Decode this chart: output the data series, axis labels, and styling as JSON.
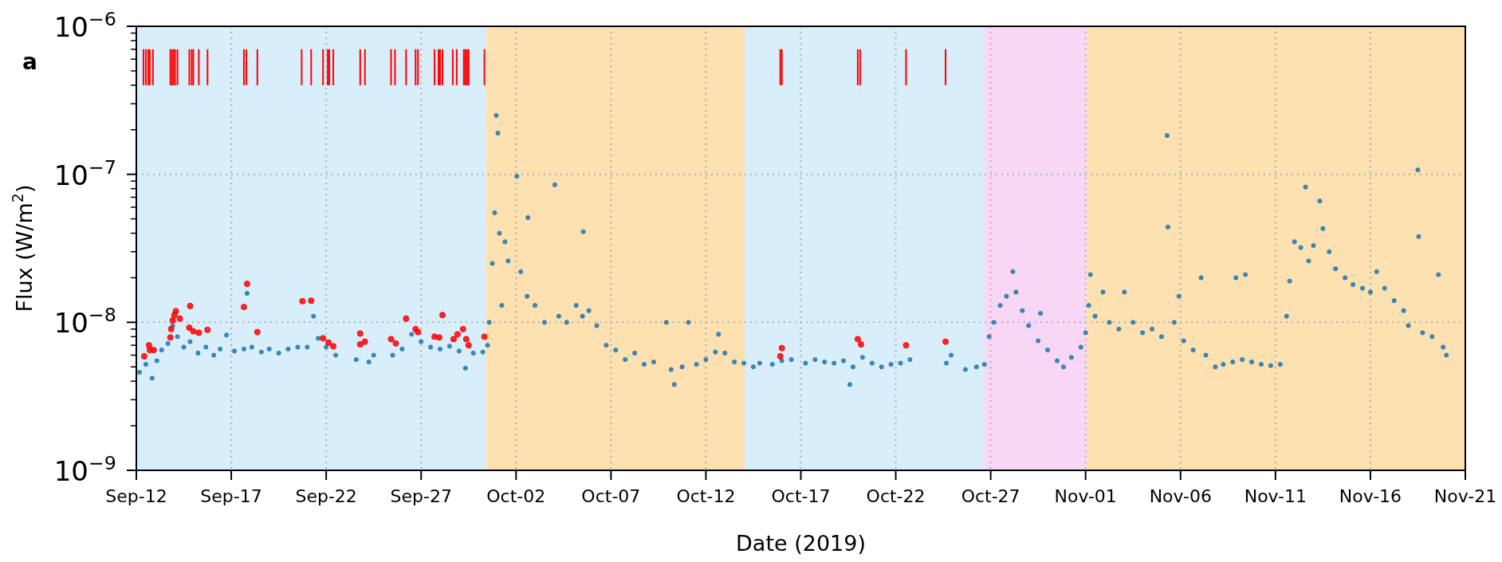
{
  "chart_data": {
    "type": "scatter",
    "xlabel": "Date (2019)",
    "ylabel": "Flux (W/m$^{2}$)",
    "annotations": [
      "a"
    ],
    "log": true,
    "grid": true,
    "marker": "circle",
    "xlim": [
      "2019-09-12",
      "2019-11-21"
    ],
    "xticks": [
      {
        "value": "2019-09-12",
        "label": "Sep-12"
      },
      {
        "value": "2019-09-17",
        "label": "Sep-17"
      },
      {
        "value": "2019-09-22",
        "label": "Sep-22"
      },
      {
        "value": "2019-09-27",
        "label": "Sep-27"
      },
      {
        "value": "2019-10-02",
        "label": "Oct-02"
      },
      {
        "value": "2019-10-07",
        "label": "Oct-07"
      },
      {
        "value": "2019-10-12",
        "label": "Oct-12"
      },
      {
        "value": "2019-10-17",
        "label": "Oct-17"
      },
      {
        "value": "2019-10-22",
        "label": "Oct-22"
      },
      {
        "value": "2019-10-27",
        "label": "Oct-27"
      },
      {
        "value": "2019-11-01",
        "label": "Nov-01"
      },
      {
        "value": "2019-11-06",
        "label": "Nov-06"
      },
      {
        "value": "2019-11-11",
        "label": "Nov-11"
      },
      {
        "value": "2019-11-16",
        "label": "Nov-16"
      },
      {
        "value": "2019-11-21",
        "label": "Nov-21"
      }
    ],
    "ylim": [
      1e-09,
      1e-06
    ],
    "yticks": [
      {
        "value": 1e-09,
        "label": "10$^{−9}$"
      },
      {
        "value": 2e-09,
        "label": null
      },
      {
        "value": 3e-09,
        "label": null
      },
      {
        "value": 4e-09,
        "label": null
      },
      {
        "value": 5e-09,
        "label": null
      },
      {
        "value": 6e-09,
        "label": null
      },
      {
        "value": 7e-09,
        "label": null
      },
      {
        "value": 8e-09,
        "label": null
      },
      {
        "value": 9e-09,
        "label": null
      },
      {
        "value": 1e-08,
        "label": "10$^{−8}$"
      },
      {
        "value": 2e-08,
        "label": null
      },
      {
        "value": 3e-08,
        "label": null
      },
      {
        "value": 4e-08,
        "label": null
      },
      {
        "value": 5e-08,
        "label": null
      },
      {
        "value": 6e-08,
        "label": null
      },
      {
        "value": 7e-08,
        "label": null
      },
      {
        "value": 8e-08,
        "label": null
      },
      {
        "value": 9e-08,
        "label": null
      },
      {
        "value": 1e-07,
        "label": "10$^{−7}$"
      },
      {
        "value": 2e-07,
        "label": null
      },
      {
        "value": 3e-07,
        "label": null
      },
      {
        "value": 4e-07,
        "label": null
      },
      {
        "value": 5e-07,
        "label": null
      },
      {
        "value": 6e-07,
        "label": null
      },
      {
        "value": 7e-07,
        "label": null
      },
      {
        "value": 8e-07,
        "label": null
      },
      {
        "value": 9e-07,
        "label": null
      },
      {
        "value": 1e-06,
        "label": "10$^{−6}$"
      }
    ],
    "bands": [
      {
        "axis": "x",
        "from": "2019-09-12",
        "to": "2019-09-30T10:00",
        "color": "#d9eefb"
      },
      {
        "axis": "x",
        "from": "2019-09-30T10:00",
        "to": "2019-10-14T01:00",
        "color": "#fde1b1"
      },
      {
        "axis": "x",
        "from": "2019-10-14T01:00",
        "to": "2019-10-26T16:00",
        "color": "#d9eefb"
      },
      {
        "axis": "x",
        "from": "2019-10-26T16:00",
        "to": "2019-11-01T01:00",
        "color": "#f8d7f6"
      },
      {
        "axis": "x",
        "from": "2019-11-01T01:00",
        "to": "2019-11-21",
        "color": "#fde1b1"
      }
    ],
    "series": [
      {
        "color": "#1f77b4",
        "x": [
          "2019-09-12T04:00",
          "2019-09-12T12:00",
          "2019-09-12T20:00",
          "2019-09-13T02:00",
          "2019-09-13T08:00",
          "2019-09-13T16:00",
          "2019-09-13T22:00",
          "2019-09-14T04:00",
          "2019-09-14T12:00",
          "2019-09-14T20:00",
          "2019-09-15T06:00",
          "2019-09-15T16:00",
          "2019-09-16T02:00",
          "2019-09-16T10:00",
          "2019-09-16T18:00",
          "2019-09-17T04:00",
          "2019-09-17T16:00",
          "2019-09-17T20:00",
          "2019-09-18T02:00",
          "2019-09-18T14:00",
          "2019-09-19T00:00",
          "2019-09-19T12:00",
          "2019-09-20T00:00",
          "2019-09-20T12:00",
          "2019-09-21T00:00",
          "2019-09-21T08:00",
          "2019-09-21T14:00",
          "2019-09-22T00:00",
          "2019-09-22T12:00",
          "2019-09-23T14:00",
          "2019-09-24T06:00",
          "2019-09-24T12:00",
          "2019-09-25T12:00",
          "2019-09-26T00:00",
          "2019-09-26T12:00",
          "2019-09-27T00:00",
          "2019-09-27T12:00",
          "2019-09-28T00:00",
          "2019-09-28T12:00",
          "2019-09-29T00:00",
          "2019-09-29T08:00",
          "2019-09-29T18:00",
          "2019-09-30T06:00",
          "2019-09-30T12:00",
          "2019-09-30T14:00",
          "2019-09-30T18:00",
          "2019-09-30T21:00",
          "2019-09-30T23:00",
          "2019-10-01T01:00",
          "2019-10-01T03:00",
          "2019-10-01T06:00",
          "2019-10-01T10:00",
          "2019-10-01T14:00",
          "2019-10-02T01:00",
          "2019-10-02T06:00",
          "2019-10-02T14:00",
          "2019-10-02T15:00",
          "2019-10-03T00:00",
          "2019-10-03T12:00",
          "2019-10-04T01:00",
          "2019-10-04T06:00",
          "2019-10-04T16:00",
          "2019-10-05T04:00",
          "2019-10-05T12:00",
          "2019-10-05T13:00",
          "2019-10-05T20:00",
          "2019-10-06T06:00",
          "2019-10-06T18:00",
          "2019-10-07T06:00",
          "2019-10-07T18:00",
          "2019-10-08T06:00",
          "2019-10-08T18:00",
          "2019-10-09T06:00",
          "2019-10-09T22:00",
          "2019-10-10T04:00",
          "2019-10-10T08:00",
          "2019-10-10T18:00",
          "2019-10-11T02:00",
          "2019-10-11T12:00",
          "2019-10-12T00:00",
          "2019-10-12T12:00",
          "2019-10-12T16:00",
          "2019-10-13T00:00",
          "2019-10-13T12:00",
          "2019-10-14T00:00",
          "2019-10-14T12:00",
          "2019-10-14T20:00",
          "2019-10-15T12:00",
          "2019-10-16T00:00",
          "2019-10-16T12:00",
          "2019-10-17T06:00",
          "2019-10-17T18:00",
          "2019-10-18T06:00",
          "2019-10-18T18:00",
          "2019-10-19T06:00",
          "2019-10-19T14:00",
          "2019-10-19T18:00",
          "2019-10-20T06:00",
          "2019-10-20T18:00",
          "2019-10-21T06:00",
          "2019-10-21T18:00",
          "2019-10-22T06:00",
          "2019-10-22T18:00",
          "2019-10-24T16:00",
          "2019-10-24T22:00",
          "2019-10-25T16:00",
          "2019-10-26T06:00",
          "2019-10-26T16:00",
          "2019-10-26T22:00",
          "2019-10-27T04:00",
          "2019-10-27T12:00",
          "2019-10-27T20:00",
          "2019-10-28T04:00",
          "2019-10-28T08:00",
          "2019-10-28T16:00",
          "2019-10-29T00:00",
          "2019-10-29T12:00",
          "2019-10-29T15:00",
          "2019-10-30T00:00",
          "2019-10-30T12:00",
          "2019-10-30T20:00",
          "2019-10-31T06:00",
          "2019-10-31T18:00",
          "2019-11-01T00:00",
          "2019-11-01T04:00",
          "2019-11-01T06:00",
          "2019-11-01T12:00",
          "2019-11-01T22:00",
          "2019-11-02T06:00",
          "2019-11-02T18:00",
          "2019-11-03T01:00",
          "2019-11-03T12:00",
          "2019-11-04T00:00",
          "2019-11-04T12:00",
          "2019-11-05T00:00",
          "2019-11-05T07:00",
          "2019-11-05T08:00",
          "2019-11-05T16:00",
          "2019-11-05T22:00",
          "2019-11-06T04:00",
          "2019-11-06T16:00",
          "2019-11-07T02:00",
          "2019-11-07T08:00",
          "2019-11-07T20:00",
          "2019-11-08T06:00",
          "2019-11-08T18:00",
          "2019-11-08T22:00",
          "2019-11-09T06:00",
          "2019-11-09T10:00",
          "2019-11-09T18:00",
          "2019-11-10T06:00",
          "2019-11-10T18:00",
          "2019-11-11T06:00",
          "2019-11-11T14:00",
          "2019-11-11T18:00",
          "2019-11-12T00:00",
          "2019-11-12T08:00",
          "2019-11-12T14:00",
          "2019-11-12T18:00",
          "2019-11-13T00:00",
          "2019-11-13T08:00",
          "2019-11-13T12:00",
          "2019-11-13T20:00",
          "2019-11-14T04:00",
          "2019-11-14T16:00",
          "2019-11-15T02:00",
          "2019-11-15T14:00",
          "2019-11-16T00:00",
          "2019-11-16T08:00",
          "2019-11-16T18:00",
          "2019-11-17T06:00",
          "2019-11-17T18:00",
          "2019-11-18T00:00",
          "2019-11-18T12:00",
          "2019-11-18T13:00",
          "2019-11-18T18:00",
          "2019-11-19T06:00",
          "2019-11-19T14:00",
          "2019-11-19T20:00",
          "2019-11-20T00:00"
        ],
        "values": [
          4.6e-09,
          5.2e-09,
          4.2e-09,
          5.5e-09,
          6.5e-09,
          7.2e-09,
          9.5e-09,
          8e-09,
          6.8e-09,
          7.4e-09,
          6.2e-09,
          6.8e-09,
          6e-09,
          6.6e-09,
          8.2e-09,
          6.4e-09,
          6.6e-09,
          1.57e-08,
          6.8e-09,
          6.3e-09,
          6.6e-09,
          6.2e-09,
          6.6e-09,
          6.8e-09,
          6.8e-09,
          1.1e-08,
          7.8e-09,
          6.8e-09,
          6e-09,
          5.6e-09,
          5.4e-09,
          6e-09,
          6e-09,
          6.6e-09,
          8.3e-09,
          7.4e-09,
          6.8e-09,
          6.6e-09,
          6.9e-09,
          6.4e-09,
          4.9e-09,
          6.2e-09,
          6.3e-09,
          7e-09,
          1e-08,
          2.5e-08,
          5.5e-08,
          2.5e-07,
          1.9e-07,
          4e-08,
          1.3e-08,
          3.5e-08,
          2.6e-08,
          9.7e-08,
          2.2e-08,
          1.5e-08,
          5.1e-08,
          1.3e-08,
          1e-08,
          8.5e-08,
          1.1e-08,
          1e-08,
          1.3e-08,
          1.1e-08,
          4.1e-08,
          1.2e-08,
          9.5e-09,
          7e-09,
          6.5e-09,
          5.6e-09,
          6.2e-09,
          5.2e-09,
          5.4e-09,
          1e-08,
          4.8e-09,
          3.8e-09,
          5e-09,
          1e-08,
          5.2e-09,
          5.6e-09,
          6.3e-09,
          8.3e-09,
          6.2e-09,
          5.4e-09,
          5.3e-09,
          5e-09,
          5.3e-09,
          5.2e-09,
          5.5e-09,
          5.6e-09,
          5.3e-09,
          5.6e-09,
          5.4e-09,
          5.3e-09,
          5.5e-09,
          3.8e-09,
          5e-09,
          5.8e-09,
          5.3e-09,
          5e-09,
          5.2e-09,
          5.3e-09,
          5.6e-09,
          5.3e-09,
          6e-09,
          4.8e-09,
          5e-09,
          5.2e-09,
          8e-09,
          1e-08,
          1.3e-08,
          1.5e-08,
          2.2e-08,
          1.6e-08,
          1.2e-08,
          9.5e-09,
          7.5e-09,
          1.15e-08,
          6.5e-09,
          5.5e-09,
          5e-09,
          5.8e-09,
          6.8e-09,
          8.5e-09,
          1.3e-08,
          2.1e-08,
          1.1e-08,
          1.6e-08,
          1e-08,
          9e-09,
          1.6e-08,
          1e-08,
          8.5e-09,
          9e-09,
          8e-09,
          1.83e-07,
          4.4e-08,
          1e-08,
          1.5e-08,
          7.5e-09,
          6.5e-09,
          2e-08,
          6e-09,
          5e-09,
          5.2e-09,
          5.4e-09,
          2e-08,
          5.6e-09,
          2.1e-08,
          5.4e-09,
          5.2e-09,
          5.1e-09,
          5.2e-09,
          1.1e-08,
          1.9e-08,
          3.5e-08,
          3.2e-08,
          8.2e-08,
          2.6e-08,
          3.3e-08,
          6.6e-08,
          4.3e-08,
          3e-08,
          2.3e-08,
          2e-08,
          1.8e-08,
          1.7e-08,
          1.6e-08,
          2.2e-08,
          1.7e-08,
          1.4e-08,
          1.2e-08,
          9.5e-09,
          1.07e-07,
          3.8e-08,
          8.5e-09,
          8e-09,
          2.1e-08,
          6.8e-09,
          6e-09
        ]
      },
      {
        "color": "#ff0000",
        "x": [
          "2019-09-12T10:00",
          "2019-09-12T16:00",
          "2019-09-12T17:00",
          "2019-09-12T22:00",
          "2019-09-13T19:00",
          "2019-09-13T20:00",
          "2019-09-13T22:00",
          "2019-09-14T00:00",
          "2019-09-14T02:00",
          "2019-09-14T07:00",
          "2019-09-14T19:00",
          "2019-09-14T20:00",
          "2019-09-15T00:00",
          "2019-09-15T07:00",
          "2019-09-15T18:00",
          "2019-09-17T16:00",
          "2019-09-17T20:00",
          "2019-09-18T09:00",
          "2019-09-20T18:00",
          "2019-09-21T05:00",
          "2019-09-21T20:00",
          "2019-09-22T03:00",
          "2019-09-22T09:00",
          "2019-09-23T19:00",
          "2019-09-23T19:00",
          "2019-09-24T01:00",
          "2019-09-25T10:00",
          "2019-09-25T16:00",
          "2019-09-26T05:00",
          "2019-09-26T17:00",
          "2019-09-26T20:00",
          "2019-09-27T17:00",
          "2019-09-27T23:00",
          "2019-09-28T03:00",
          "2019-09-28T17:00",
          "2019-09-28T22:00",
          "2019-09-29T05:00",
          "2019-09-29T09:00",
          "2019-09-29T12:00",
          "2019-09-30T08:00",
          "2019-10-15T22:00",
          "2019-10-16T00:00",
          "2019-10-20T00:00",
          "2019-10-20T04:00",
          "2019-10-22T13:00",
          "2019-10-24T15:00"
        ],
        "values": [
          5.9e-09,
          7e-09,
          6.5e-09,
          6.5e-09,
          7.9e-09,
          9e-09,
          1.03e-08,
          1.12e-08,
          1.19e-08,
          1.06e-08,
          9.2e-09,
          1.29e-08,
          8.7e-09,
          8.5e-09,
          8.9e-09,
          1.27e-08,
          1.82e-08,
          8.6e-09,
          1.39e-08,
          1.4e-08,
          7.8e-09,
          7.3e-09,
          6.9e-09,
          8.4e-09,
          7.1e-09,
          7.4e-09,
          7.7e-09,
          7.2e-09,
          1.06e-08,
          9e-09,
          8.6e-09,
          8e-09,
          7.9e-09,
          1.12e-08,
          7.7e-09,
          8.3e-09,
          9e-09,
          7.7e-09,
          7e-09,
          8e-09,
          5.9e-09,
          6.7e-09,
          7.7e-09,
          7.1e-09,
          7e-09,
          7.4e-09
        ]
      },
      {
        "type": "bar",
        "color": "#ff0000",
        "x": [
          "2019-09-12T09:00",
          "2019-09-12T12:00",
          "2019-09-12T15:00",
          "2019-09-12T17:00",
          "2019-09-12T21:00",
          "2019-09-13T19:00",
          "2019-09-13T21:00",
          "2019-09-13T23:00",
          "2019-09-14T01:00",
          "2019-09-14T04:00",
          "2019-09-14T19:00",
          "2019-09-14T22:00",
          "2019-09-15T00:00",
          "2019-09-15T07:00",
          "2019-09-15T18:00",
          "2019-09-17T16:00",
          "2019-09-17T19:00",
          "2019-09-18T09:00",
          "2019-09-20T17:00",
          "2019-09-21T05:00",
          "2019-09-21T20:00",
          "2019-09-22T02:00",
          "2019-09-22T04:00",
          "2019-09-22T09:00",
          "2019-09-23T19:00",
          "2019-09-24T01:00",
          "2019-09-25T10:00",
          "2019-09-25T15:00",
          "2019-09-26T05:00",
          "2019-09-26T17:00",
          "2019-09-26T20:00",
          "2019-09-27T17:00",
          "2019-09-27T22:00",
          "2019-09-28T00:00",
          "2019-09-28T03:00",
          "2019-09-28T16:00",
          "2019-09-28T21:00",
          "2019-09-29T06:00",
          "2019-09-29T08:00",
          "2019-09-29T10:00",
          "2019-09-29T12:00",
          "2019-09-30T08:00",
          "2019-10-15T22:00",
          "2019-10-16T00:00",
          "2019-10-20T00:00",
          "2019-10-20T03:00",
          "2019-10-22T13:00",
          "2019-10-24T15:00"
        ],
        "base": [
          4e-07,
          4e-07,
          4e-07,
          4e-07,
          4e-07,
          4e-07,
          4e-07,
          4e-07,
          4e-07,
          4e-07,
          4e-07,
          4e-07,
          4e-07,
          4e-07,
          4e-07,
          4e-07,
          4e-07,
          4e-07,
          4e-07,
          4e-07,
          4e-07,
          4e-07,
          4e-07,
          4e-07,
          4e-07,
          4e-07,
          4e-07,
          4e-07,
          4e-07,
          4e-07,
          4e-07,
          4e-07,
          4e-07,
          4e-07,
          4e-07,
          4e-07,
          4e-07,
          4e-07,
          4e-07,
          4e-07,
          4e-07,
          4e-07,
          4e-07,
          4e-07,
          4e-07,
          4e-07,
          4e-07,
          4e-07
        ],
        "values": [
          3e-07,
          3e-07,
          3e-07,
          3e-07,
          3e-07,
          3e-07,
          3e-07,
          3e-07,
          3e-07,
          3e-07,
          3e-07,
          3e-07,
          3e-07,
          3e-07,
          3e-07,
          3e-07,
          3e-07,
          3e-07,
          3e-07,
          3e-07,
          3e-07,
          3e-07,
          3e-07,
          3e-07,
          3e-07,
          3e-07,
          3e-07,
          3e-07,
          3e-07,
          3e-07,
          3e-07,
          3e-07,
          3e-07,
          3e-07,
          3e-07,
          3e-07,
          3e-07,
          3e-07,
          3e-07,
          3e-07,
          3e-07,
          3e-07,
          3e-07,
          3e-07,
          3e-07,
          3e-07,
          3e-07,
          3e-07
        ]
      }
    ]
  }
}
